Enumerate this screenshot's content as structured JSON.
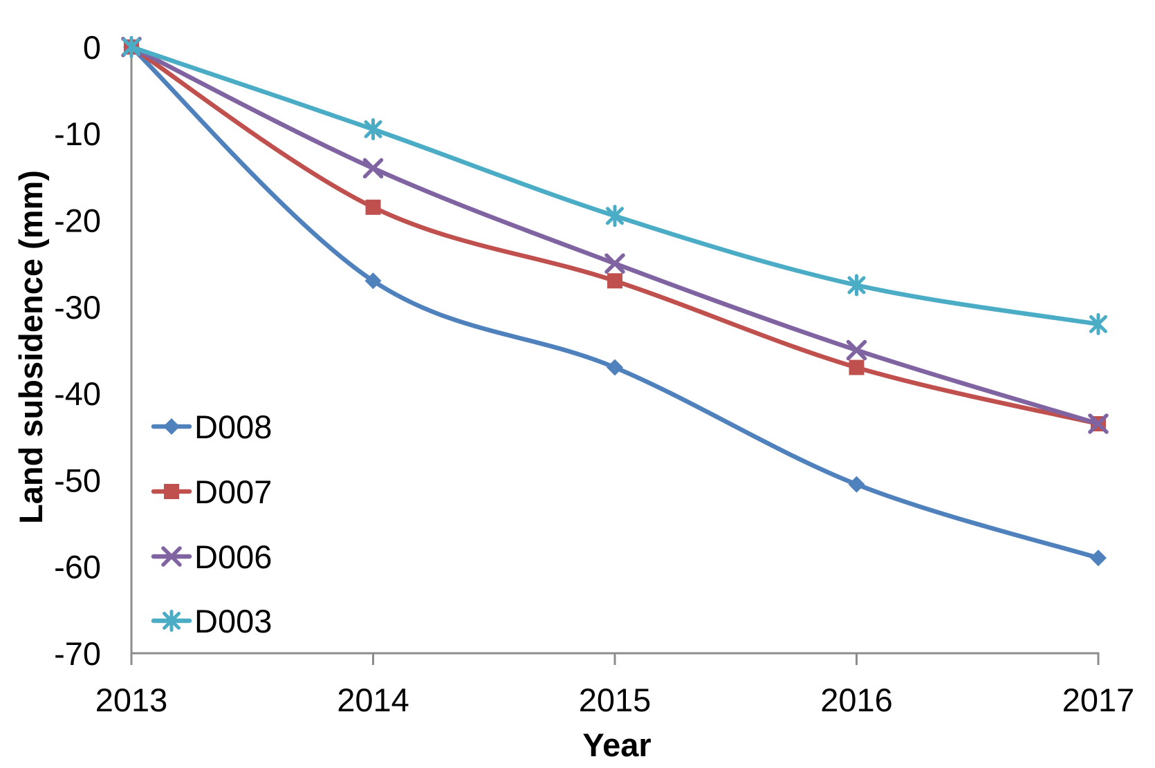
{
  "chart_data": {
    "type": "line",
    "title": "",
    "xlabel": "Year",
    "ylabel": "Land subsidence (mm)",
    "x_categories": [
      "2013",
      "2014",
      "2015",
      "2016",
      "2017"
    ],
    "x_tick_labels": [
      "2013",
      "2014",
      "2015",
      "2016",
      "2017"
    ],
    "y_ticks": [
      0,
      -10,
      -20,
      -30,
      -40,
      -50,
      -60,
      -70
    ],
    "y_tick_labels": [
      "0",
      "-10",
      "-20",
      "-30",
      "-40",
      "-50",
      "-60",
      "-70"
    ],
    "ylim": [
      -70,
      0
    ],
    "grid": false,
    "line_style": "smooth",
    "legend_position": "inside-lower-left",
    "axis_color": "#8c8c8c",
    "text_color": "#000000",
    "series": [
      {
        "name": "D008",
        "color": "#4F81BD",
        "marker": "diamond",
        "values": [
          0,
          -27,
          -37,
          -50.5,
          -59
        ]
      },
      {
        "name": "D007",
        "color": "#C0504D",
        "marker": "square",
        "values": [
          0,
          -18.5,
          -27,
          -37,
          -43.5
        ]
      },
      {
        "name": "D006",
        "color": "#8064A2",
        "marker": "x",
        "values": [
          0,
          -14,
          -25,
          -35,
          -43.5
        ]
      },
      {
        "name": "D003",
        "color": "#4BACC6",
        "marker": "asterisk",
        "values": [
          0,
          -9.5,
          -19.5,
          -27.5,
          -32
        ]
      }
    ]
  }
}
